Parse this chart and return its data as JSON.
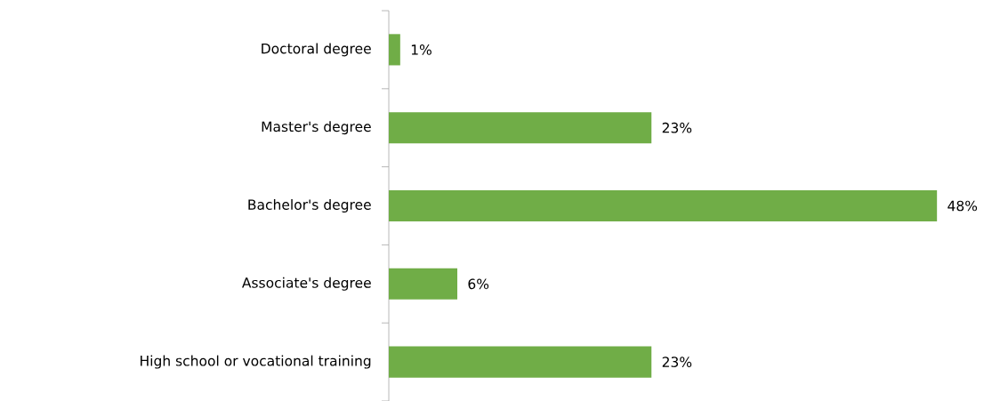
{
  "chart_data": {
    "type": "bar",
    "orientation": "horizontal",
    "categories": [
      "Doctoral degree",
      "Master's degree",
      "Bachelor's degree",
      "Associate's degree",
      "High school or vocational training"
    ],
    "values": [
      1,
      23,
      48,
      6,
      23
    ],
    "value_labels": [
      "1%",
      "23%",
      "48%",
      "6%",
      "23%"
    ],
    "color": "#70ad47",
    "tick_labels": "y"
  }
}
